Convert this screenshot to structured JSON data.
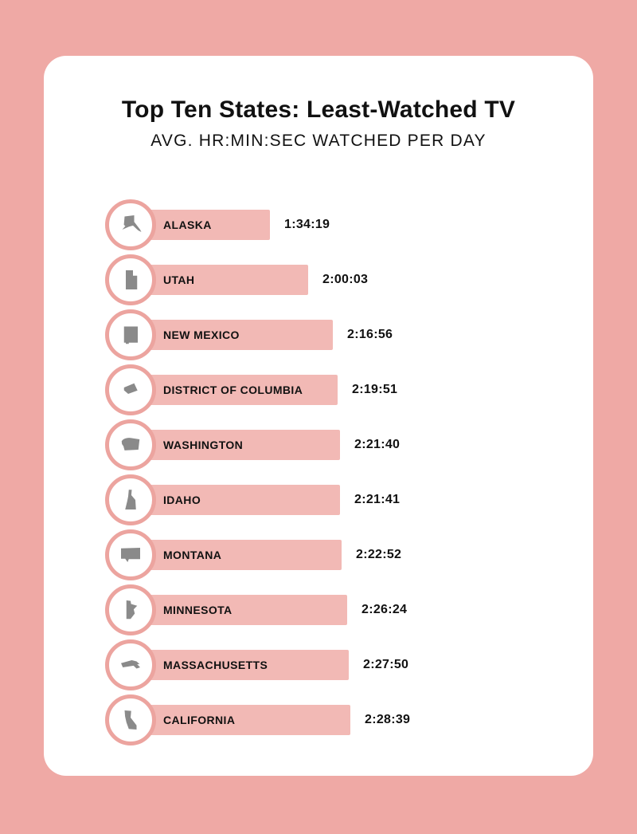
{
  "header": {
    "title": "Top Ten States: Least-Watched TV",
    "subtitle": "AVG. HR:MIN:SEC WATCHED PER DAY"
  },
  "colors": {
    "background": "#efa9a5",
    "card": "#ffffff",
    "bar": "#f2b9b5",
    "ring": "#eca49f",
    "state_icon": "#8a8a8a",
    "text": "#111111"
  },
  "chart_data": {
    "type": "bar",
    "orientation": "horizontal",
    "title": "Top Ten States: Least-Watched TV",
    "subtitle": "AVG. HR:MIN:SEC WATCHED PER DAY",
    "unit": "hr:min:sec watched per day",
    "value_format": "h:mm:ss",
    "sort": "ascending",
    "grid": false,
    "legend": false,
    "categories": [
      "ALASKA",
      "UTAH",
      "NEW MEXICO",
      "DISTRICT OF COLUMBIA",
      "WASHINGTON",
      "IDAHO",
      "MONTANA",
      "MINNESOTA",
      "MASSACHUSETTS",
      "CALIFORNIA"
    ],
    "values": [
      "1:34:19",
      "2:00:03",
      "2:16:56",
      "2:19:51",
      "2:21:40",
      "2:21:41",
      "2:22:52",
      "2:26:24",
      "2:27:50",
      "2:28:39"
    ],
    "icons": [
      "alaska-icon",
      "utah-icon",
      "new-mexico-icon",
      "district-of-columbia-icon",
      "washington-icon",
      "idaho-icon",
      "montana-icon",
      "minnesota-icon",
      "massachusetts-icon",
      "california-icon"
    ]
  }
}
